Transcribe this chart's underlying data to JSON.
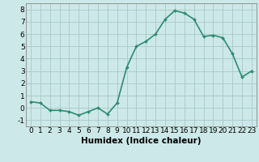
{
  "x_values": [
    0,
    1,
    2,
    3,
    4,
    5,
    6,
    7,
    8,
    9,
    10,
    11,
    12,
    13,
    14,
    15,
    16,
    17,
    18,
    19,
    20,
    21,
    22,
    23
  ],
  "y_values": [
    0.5,
    0.4,
    -0.2,
    -0.2,
    -0.3,
    -0.6,
    -0.3,
    0.0,
    -0.5,
    0.4,
    3.3,
    5.0,
    5.4,
    6.0,
    7.2,
    7.9,
    7.7,
    7.2,
    5.8,
    5.9,
    5.7,
    4.4,
    2.5,
    3.0
  ],
  "line_color": "#2e8b73",
  "marker": "D",
  "marker_size": 2.0,
  "bg_color": "#cce8e8",
  "grid_color": "#aac8c8",
  "xlabel": "Humidex (Indice chaleur)",
  "xlim": [
    -0.5,
    23.5
  ],
  "ylim": [
    -1.5,
    8.5
  ],
  "yticks": [
    -1,
    0,
    1,
    2,
    3,
    4,
    5,
    6,
    7,
    8
  ],
  "xticks": [
    0,
    1,
    2,
    3,
    4,
    5,
    6,
    7,
    8,
    9,
    10,
    11,
    12,
    13,
    14,
    15,
    16,
    17,
    18,
    19,
    20,
    21,
    22,
    23
  ],
  "line_width": 1.2,
  "tick_fontsize": 6.5,
  "xlabel_fontsize": 7.5
}
